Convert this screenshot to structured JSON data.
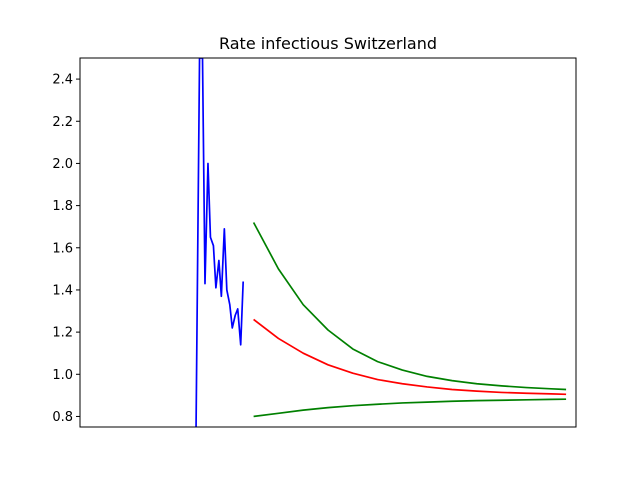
{
  "chart_data": {
    "type": "line",
    "title": "Rate infectious Switzerland",
    "xlabel": "",
    "ylabel": "",
    "x_ticks_shown": false,
    "xlim": [
      0,
      100
    ],
    "ylim": [
      0.75,
      2.5
    ],
    "yticks": [
      0.8,
      1.0,
      1.2,
      1.4,
      1.6,
      1.8,
      2.0,
      2.2,
      2.4
    ],
    "ytick_labels": [
      "0.8",
      "1.0",
      "1.2",
      "1.4",
      "1.6",
      "1.8",
      "2.0",
      "2.2",
      "2.4"
    ],
    "grid": false,
    "legend": "none",
    "series": [
      {
        "color": "#0000ff",
        "x": [
          23.4,
          24.1,
          24.7,
          25.2,
          25.8,
          26.3,
          26.9,
          27.4,
          28.0,
          28.5,
          29.1,
          29.6,
          30.2,
          30.7,
          31.3,
          31.8,
          32.4,
          32.9,
          33.5,
          34.0,
          34.6
        ],
        "y": [
          0.75,
          2.5,
          2.5,
          1.43,
          2.0,
          1.65,
          1.61,
          1.41,
          1.54,
          1.37,
          1.69,
          1.4,
          1.33,
          1.22,
          1.28,
          1.31,
          1.14,
          1.44,
          null,
          null,
          null
        ]
      },
      {
        "color": "#ff0000",
        "x": [
          35,
          40,
          45,
          50,
          55,
          60,
          65,
          70,
          75,
          80,
          85,
          90,
          95,
          98
        ],
        "y": [
          1.26,
          1.17,
          1.1,
          1.045,
          1.005,
          0.975,
          0.955,
          0.94,
          0.928,
          0.92,
          0.914,
          0.91,
          0.907,
          0.905
        ]
      },
      {
        "color": "#008000",
        "x": [
          35,
          40,
          45,
          50,
          55,
          60,
          65,
          70,
          75,
          80,
          85,
          90,
          95,
          98
        ],
        "y": [
          1.72,
          1.5,
          1.33,
          1.21,
          1.12,
          1.06,
          1.02,
          0.99,
          0.97,
          0.955,
          0.945,
          0.937,
          0.931,
          0.928
        ]
      },
      {
        "color": "#008000",
        "x": [
          35,
          40,
          45,
          50,
          55,
          60,
          65,
          70,
          75,
          80,
          85,
          90,
          95,
          98
        ],
        "y": [
          0.8,
          0.815,
          0.83,
          0.842,
          0.851,
          0.858,
          0.864,
          0.868,
          0.872,
          0.875,
          0.877,
          0.879,
          0.881,
          0.882
        ]
      }
    ]
  }
}
